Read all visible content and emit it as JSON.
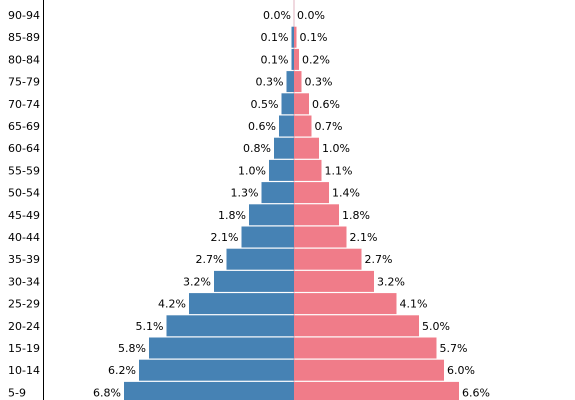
{
  "chart_data": {
    "type": "bar",
    "orientation": "horizontal-diverging",
    "categories": [
      "90-94",
      "85-89",
      "80-84",
      "75-79",
      "70-74",
      "65-69",
      "60-64",
      "55-59",
      "50-54",
      "45-49",
      "40-44",
      "35-39",
      "30-34",
      "25-29",
      "20-24",
      "15-19",
      "10-14",
      "5-9"
    ],
    "series": [
      {
        "color": "#4682b4",
        "side": "left",
        "values": [
          0.0,
          0.1,
          0.1,
          0.3,
          0.5,
          0.6,
          0.8,
          1.0,
          1.3,
          1.8,
          2.1,
          2.7,
          3.2,
          4.2,
          5.1,
          5.8,
          6.2,
          6.8
        ],
        "labels": [
          "0.0%",
          "0.1%",
          "0.1%",
          "0.3%",
          "0.5%",
          "0.6%",
          "0.8%",
          "1.0%",
          "1.3%",
          "1.8%",
          "2.1%",
          "2.7%",
          "3.2%",
          "4.2%",
          "5.1%",
          "5.8%",
          "6.2%",
          "6.8%"
        ]
      },
      {
        "color": "#f07c89",
        "side": "right",
        "values": [
          0.0,
          0.1,
          0.2,
          0.3,
          0.6,
          0.7,
          1.0,
          1.1,
          1.4,
          1.8,
          2.1,
          2.7,
          3.2,
          4.1,
          5.0,
          5.7,
          6.0,
          6.6
        ],
        "labels": [
          "0.0%",
          "0.1%",
          "0.2%",
          "0.3%",
          "0.6%",
          "0.7%",
          "1.0%",
          "1.1%",
          "1.4%",
          "1.8%",
          "2.1%",
          "2.7%",
          "3.2%",
          "4.1%",
          "5.0%",
          "5.7%",
          "6.0%",
          "6.6%"
        ]
      }
    ],
    "title": "",
    "xlabel": "",
    "ylabel": "",
    "grid": false,
    "legend": "none"
  }
}
